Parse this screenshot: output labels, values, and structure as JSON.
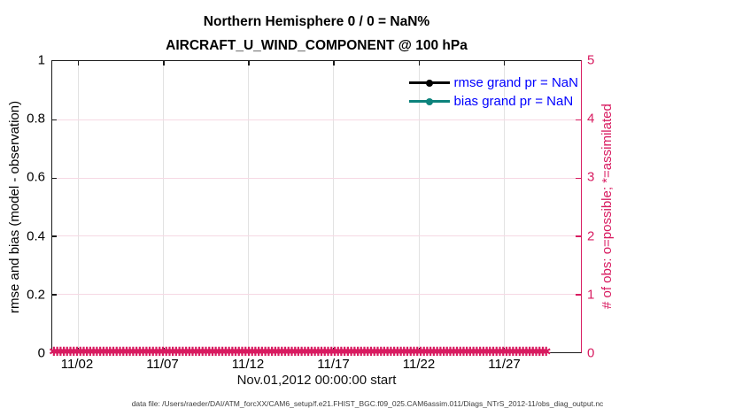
{
  "title": {
    "line1": "Northern Hemisphere 0 / 0 = NaN%",
    "line2": "AIRCRAFT_U_WIND_COMPONENT @ 100 hPa"
  },
  "left_axis": {
    "label": "rmse and bias (model - observation)",
    "ticks_bottom_to_top": [
      "0",
      "0.2",
      "0.4",
      "0.6",
      "0.8",
      "1"
    ],
    "color": "#000000"
  },
  "right_axis": {
    "label": "# of obs: o=possible; *=assimilated",
    "ticks_bottom_to_top": [
      "0",
      "1",
      "2",
      "3",
      "4",
      "5"
    ],
    "color": "#d81b60"
  },
  "x_axis": {
    "label": "Nov.01,2012 00:00:00 start",
    "ticks": [
      "11/02",
      "11/07",
      "11/12",
      "11/17",
      "11/22",
      "11/27"
    ]
  },
  "legend": {
    "text_color": "#0000ff",
    "items": [
      {
        "label": "rmse grand pr = NaN",
        "color": "#000000"
      },
      {
        "label": "bias grand pr = NaN",
        "color": "#0d837c"
      }
    ]
  },
  "band_glyph": "✱",
  "footer": {
    "text": "data file: /Users/raeder/DAI/ATM_forcXX/CAM6_setup/f.e21.FHIST_BGC.f09_025.CAM6assim.011/Diags_NTrS_2012-11/obs_diag_output.nc"
  },
  "chart_data": {
    "type": "line",
    "title": "Northern Hemisphere 0 / 0 = NaN%",
    "subtitle": "AIRCRAFT_U_WIND_COMPONENT @ 100 hPa",
    "xlabel": "Nov.01,2012 00:00:00 start",
    "x_range": [
      "2012-11-01 00:00",
      "2012-12-01 00:00"
    ],
    "x_tick_labels": [
      "11/02",
      "11/07",
      "11/12",
      "11/17",
      "11/22",
      "11/27"
    ],
    "left_ylabel": "rmse and bias (model - observation)",
    "left_ylim": [
      0,
      1
    ],
    "left_yticks": [
      0,
      0.2,
      0.4,
      0.6,
      0.8,
      1
    ],
    "right_ylabel": "# of obs: o=possible; *=assimilated",
    "right_ylim": [
      0,
      5
    ],
    "right_yticks": [
      0,
      1,
      2,
      3,
      4,
      5
    ],
    "grid": true,
    "legend_position": "top-right-inside",
    "series": [
      {
        "name": "rmse grand pr = NaN",
        "axis": "left",
        "color": "#000000",
        "marker": "filled-circle",
        "values": "NaN (nothing plotted; 0 of 0 obs)"
      },
      {
        "name": "bias grand pr = NaN",
        "axis": "left",
        "color": "#0d837c",
        "marker": "filled-circle",
        "values": "NaN (nothing plotted; 0 of 0 obs)"
      },
      {
        "name": "possible obs (o)",
        "axis": "right",
        "color": "#d81b60",
        "marker": "o",
        "constant_value": 0,
        "note": "0 at every sub-daily time Nov 1 - Dec 1, 2012 (dense marker band along y=0)"
      },
      {
        "name": "assimilated obs (*)",
        "axis": "right",
        "color": "#d81b60",
        "marker": "*",
        "constant_value": 0,
        "note": "0 at every sub-daily time Nov 1 - Dec 1, 2012 (dense marker band along y=0)"
      }
    ]
  }
}
